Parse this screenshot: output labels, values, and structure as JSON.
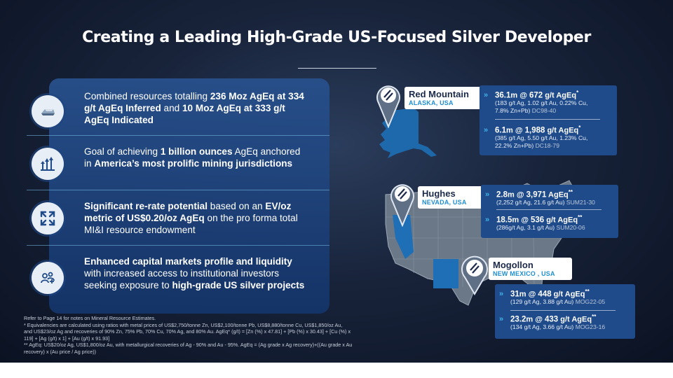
{
  "title": "Creating a Leading High-Grade US-Focused Silver Developer",
  "items": [
    {
      "icon": "silver-bar-icon",
      "parts": [
        {
          "t": "Combined resources totalling ",
          "b": false
        },
        {
          "t": "236 Moz AgEq at 334 g/t AgEq Inferred",
          "b": true
        },
        {
          "t": " and ",
          "b": false
        },
        {
          "t": "10 Moz AgEq at 333 g/t AgEq Indicated",
          "b": true
        }
      ]
    },
    {
      "icon": "growth-arrows-icon",
      "parts": [
        {
          "t": "Goal of achieving ",
          "b": false
        },
        {
          "t": "1 billion ounces",
          "b": true
        },
        {
          "t": " AgEq anchored in ",
          "b": false
        },
        {
          "t": "America’s most prolific mining jurisdictions",
          "b": true
        }
      ]
    },
    {
      "icon": "expand-arrows-icon",
      "parts": [
        {
          "t": "Significant re-rate potential",
          "b": true
        },
        {
          "t": " based on an ",
          "b": false
        },
        {
          "t": "EV/oz metric of US$0.20/oz AgEq",
          "b": true
        },
        {
          "t": " on the pro forma total MI&I resource endowment",
          "b": false
        }
      ]
    },
    {
      "icon": "investors-icon",
      "parts": [
        {
          "t": "Enhanced capital markets profile and liquidity",
          "b": true
        },
        {
          "t": " with increased access to institutional investors seeking exposure to ",
          "b": false
        },
        {
          "t": "high-grade US silver projects",
          "b": true
        }
      ]
    }
  ],
  "footnotes": [
    "Refer to Page 14 for notes on Mineral Resource Estimates.",
    "* Equivalencies are calculated using ratios with metal prices of US$2,750/tonne Zn, US$2,100/tonne Pb, US$8,880/tonne Cu, US$1,850/oz Au,",
    "and US$23/oz Ag and recoveries of 90% Zn, 75% Pb, 70% Cu, 70% Ag, and 80% Au.     AgEq* (g/t) = [Zn (%) x 47.81] + [Pb (%) x 30.43] + [Cu (%) x",
    "119] + [Ag (g/t) x 1] + [Au (g/t) x 91.93]",
    "** AgEq: US$20/oz Ag, US$1,800/oz Au, with metallurgical recoveries of Ag - 90% and Au - 95%. AgEq = (Ag grade x Ag recovery)+((Au grade x Au",
    "recovery) x (Au price / Ag price))"
  ],
  "sites": [
    {
      "name": "Red Mountain",
      "location": "ALASKA, USA",
      "stats": [
        {
          "len": "36.1",
          "len_unit": "m @ ",
          "grade": "672",
          "unit": " g/t AgEq",
          "mark": "*",
          "detail": [
            "(183 g/t Ag, 1.02 g/t Au, 0.22% Cu,",
            "7.8% Zn+Pb)"
          ],
          "hole": "DC98-40"
        },
        {
          "len": "6.1",
          "len_unit": "m @ ",
          "grade": "1,988",
          "unit": " g/t AgEq",
          "mark": "*",
          "detail": [
            "(385 g/t Ag, 5.50 g/t Au, 1.23% Cu,",
            "22.2% Zn+Pb)"
          ],
          "hole": "DC18-79"
        }
      ]
    },
    {
      "name": "Hughes",
      "location": "NEVADA, USA",
      "stats": [
        {
          "len": "2.8",
          "len_unit": "m @ ",
          "grade": "3,971",
          "unit": " AgEq",
          "mark": "**",
          "detail": [
            "(2,252 g/t Ag, 21.6 g/t Au)"
          ],
          "hole": "SUM21-30"
        },
        {
          "len": "18.5",
          "len_unit": "m @ ",
          "grade": "536",
          "unit": " g/t AgEq",
          "mark": "**",
          "detail": [
            "(286g/t Ag, 3.1 g/t Au)"
          ],
          "hole": "SUM20-06"
        }
      ]
    },
    {
      "name": "Mogollon",
      "location": "NEW MEXICO , USA",
      "stats": [
        {
          "len": "31",
          "len_unit": "m @ ",
          "grade": "448",
          "unit": " g/t AgEq",
          "mark": "**",
          "detail": [
            "(129 g/t Ag, 3.88 g/t Au)"
          ],
          "hole": "MOG22-05"
        },
        {
          "len": "23.2",
          "len_unit": "m @ ",
          "grade": "433",
          "unit": " g/t AgEq",
          "mark": "**",
          "detail": [
            "(134 g/t Ag, 3.66 g/t Au)"
          ],
          "hole": "MOG23-16"
        }
      ]
    }
  ],
  "colors": {
    "accent": "#3fb3ea",
    "panel": "#1f4b8a",
    "label_sub": "#1f8fd0",
    "state_highlight": "#1e6fb5"
  }
}
